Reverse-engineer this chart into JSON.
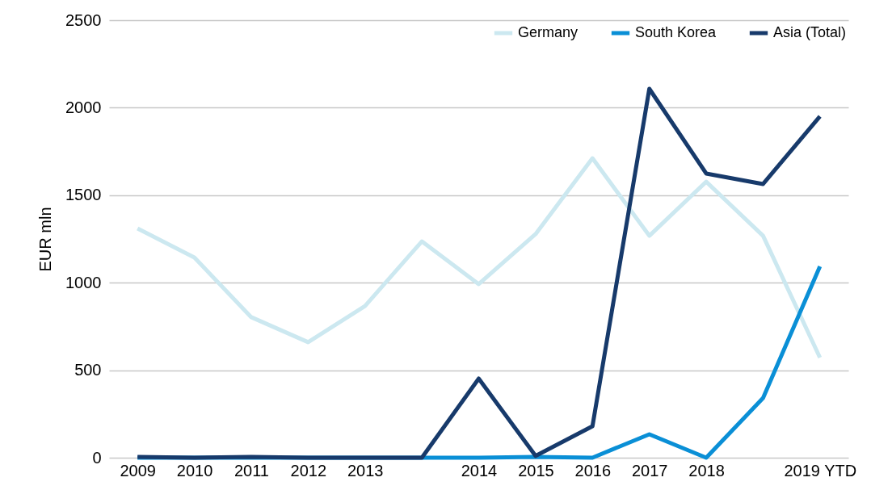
{
  "chart_data": {
    "type": "line",
    "ylabel": "EUR mln",
    "categories": [
      "2009",
      "2010",
      "2011",
      "2012",
      "2013",
      null,
      "2014",
      "2015",
      "2016",
      "2017",
      "2018",
      null,
      "2019 YTD"
    ],
    "series": [
      {
        "name": "Germany",
        "color": "#cce8f0",
        "values": [
          1310,
          1144,
          803,
          660,
          867,
          1236,
          992,
          1278,
          1711,
          1268,
          1577,
          1268,
          572
        ]
      },
      {
        "name": "South Korea",
        "color": "#0a8fd6",
        "values": [
          0,
          0,
          0,
          0,
          0,
          0,
          0,
          5,
          0,
          134,
          0,
          341,
          1093
        ]
      },
      {
        "name": "Asia (Total)",
        "color": "#173a6b",
        "values": [
          5,
          0,
          5,
          0,
          0,
          0,
          452,
          10,
          180,
          2108,
          1624,
          1564,
          1951
        ]
      }
    ],
    "ylim": [
      0,
      2500
    ],
    "yticks": [
      0,
      500,
      1000,
      1500,
      2000,
      2500
    ],
    "grid": "y",
    "legend": "top right",
    "marker": "none",
    "line_style": "solid"
  }
}
